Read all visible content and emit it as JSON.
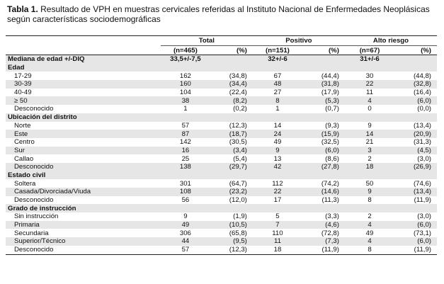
{
  "title": {
    "label": "Tabla 1.",
    "text": "Resultado de VPH en muestras cervicales referidas al Instituto Nacional de Enfermedades Neoplásicas según características sociodemográficas"
  },
  "headers": {
    "total": "Total",
    "positivo": "Positivo",
    "alto_riesgo": "Alto riesgo",
    "total_n": "(n=465)",
    "positivo_n": "(n=151)",
    "alto_riesgo_n": "(n=67)",
    "pct": "(%)"
  },
  "median": {
    "label": "Mediana de edad +/-DIQ",
    "total": "33,5+/-7,5",
    "positivo": "32+/-6",
    "alto_riesgo": "31+/-6"
  },
  "groups": [
    {
      "name": "Edad",
      "rows": [
        {
          "label": "17-29",
          "t": "162",
          "tp": "(34,8)",
          "p": "67",
          "pp": "(44,4)",
          "a": "30",
          "ap": "(44,8)"
        },
        {
          "label": "30-39",
          "t": "160",
          "tp": "(34,4)",
          "p": "48",
          "pp": "(31,8)",
          "a": "22",
          "ap": "(32,8)"
        },
        {
          "label": "40-49",
          "t": "104",
          "tp": "(22,4)",
          "p": "27",
          "pp": "(17,9)",
          "a": "11",
          "ap": "(16,4)"
        },
        {
          "label": "≥ 50",
          "t": "38",
          "tp": "(8,2)",
          "p": "8",
          "pp": "(5,3)",
          "a": "4",
          "ap": "(6,0)"
        },
        {
          "label": "Desconocido",
          "t": "1",
          "tp": "(0,2)",
          "p": "1",
          "pp": "(0,7)",
          "a": "0",
          "ap": "(0,0)"
        }
      ]
    },
    {
      "name": "Ubicación del distrito",
      "rows": [
        {
          "label": "Norte",
          "t": "57",
          "tp": "(12,3)",
          "p": "14",
          "pp": "(9,3)",
          "a": "9",
          "ap": "(13,4)"
        },
        {
          "label": "Este",
          "t": "87",
          "tp": "(18,7)",
          "p": "24",
          "pp": "(15,9)",
          "a": "14",
          "ap": "(20,9)"
        },
        {
          "label": "Centro",
          "t": "142",
          "tp": "(30,5)",
          "p": "49",
          "pp": "(32,5)",
          "a": "21",
          "ap": "(31,3)"
        },
        {
          "label": "Sur",
          "t": "16",
          "tp": "(3,4)",
          "p": "9",
          "pp": "(6,0)",
          "a": "3",
          "ap": "(4,5)"
        },
        {
          "label": "Callao",
          "t": "25",
          "tp": "(5,4)",
          "p": "13",
          "pp": "(8,6)",
          "a": "2",
          "ap": "(3,0)"
        },
        {
          "label": "Desconocido",
          "t": "138",
          "tp": "(29,7)",
          "p": "42",
          "pp": "(27,8)",
          "a": "18",
          "ap": "(26,9)"
        }
      ]
    },
    {
      "name": "Estado civil",
      "rows": [
        {
          "label": "Soltera",
          "t": "301",
          "tp": "(64,7)",
          "p": "112",
          "pp": "(74,2)",
          "a": "50",
          "ap": "(74,6)"
        },
        {
          "label": "Casada/Divorciada/Viuda",
          "t": "108",
          "tp": "(23,2)",
          "p": "22",
          "pp": "(14,6)",
          "a": "9",
          "ap": "(13,4)"
        },
        {
          "label": "Desconocido",
          "t": "56",
          "tp": "(12,0)",
          "p": "17",
          "pp": "(11,3)",
          "a": "8",
          "ap": "(11,9)"
        }
      ]
    },
    {
      "name": "Grado de instrucción",
      "rows": [
        {
          "label": "Sin instrucción",
          "t": "9",
          "tp": "(1,9)",
          "p": "5",
          "pp": "(3,3)",
          "a": "2",
          "ap": "(3,0)"
        },
        {
          "label": "Primaria",
          "t": "49",
          "tp": "(10,5)",
          "p": "7",
          "pp": "(4,6)",
          "a": "4",
          "ap": "(6,0)"
        },
        {
          "label": "Secundaria",
          "t": "306",
          "tp": "(65,8)",
          "p": "110",
          "pp": "(72,8)",
          "a": "49",
          "ap": "(73,1)"
        },
        {
          "label": "Superior/Técnico",
          "t": "44",
          "tp": "(9,5)",
          "p": "11",
          "pp": "(7,3)",
          "a": "4",
          "ap": "(6,0)"
        },
        {
          "label": "Desconocido",
          "t": "57",
          "tp": "(12,3)",
          "p": "18",
          "pp": "(11,9)",
          "a": "8",
          "ap": "(11,9)"
        }
      ]
    }
  ]
}
